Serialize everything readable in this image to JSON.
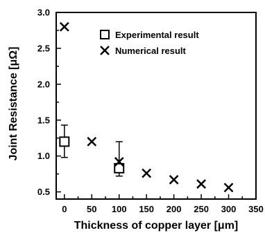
{
  "chart_data": {
    "type": "scatter",
    "xlabel": "Thickness of copper layer [μm]",
    "ylabel": "Joint Resistance [μΩ]",
    "xlim": [
      -15,
      350
    ],
    "ylim": [
      0.4,
      3.0
    ],
    "xticks": [
      0,
      50,
      100,
      150,
      200,
      250,
      300,
      350
    ],
    "yticks": [
      0.5,
      1.0,
      1.5,
      2.0,
      2.5,
      3.0
    ],
    "xtick_labels": [
      "0",
      "50",
      "100",
      "150",
      "200",
      "250",
      "300",
      "350"
    ],
    "ytick_labels": [
      "0.5",
      "1.0",
      "1.5",
      "2.0",
      "2.5",
      "3.0"
    ],
    "grid": false,
    "legend_position": "top-right",
    "series": [
      {
        "name": "Experimental result",
        "marker": "open-square",
        "x": [
          0,
          100
        ],
        "y": [
          1.2,
          0.83
        ],
        "yerr_low": [
          0.98,
          0.72
        ],
        "yerr_high": [
          1.43,
          1.2
        ]
      },
      {
        "name": "Numerical result",
        "marker": "x",
        "x": [
          0,
          50,
          100,
          150,
          200,
          250,
          300
        ],
        "y": [
          2.8,
          1.2,
          0.92,
          0.76,
          0.67,
          0.61,
          0.56
        ]
      }
    ]
  }
}
